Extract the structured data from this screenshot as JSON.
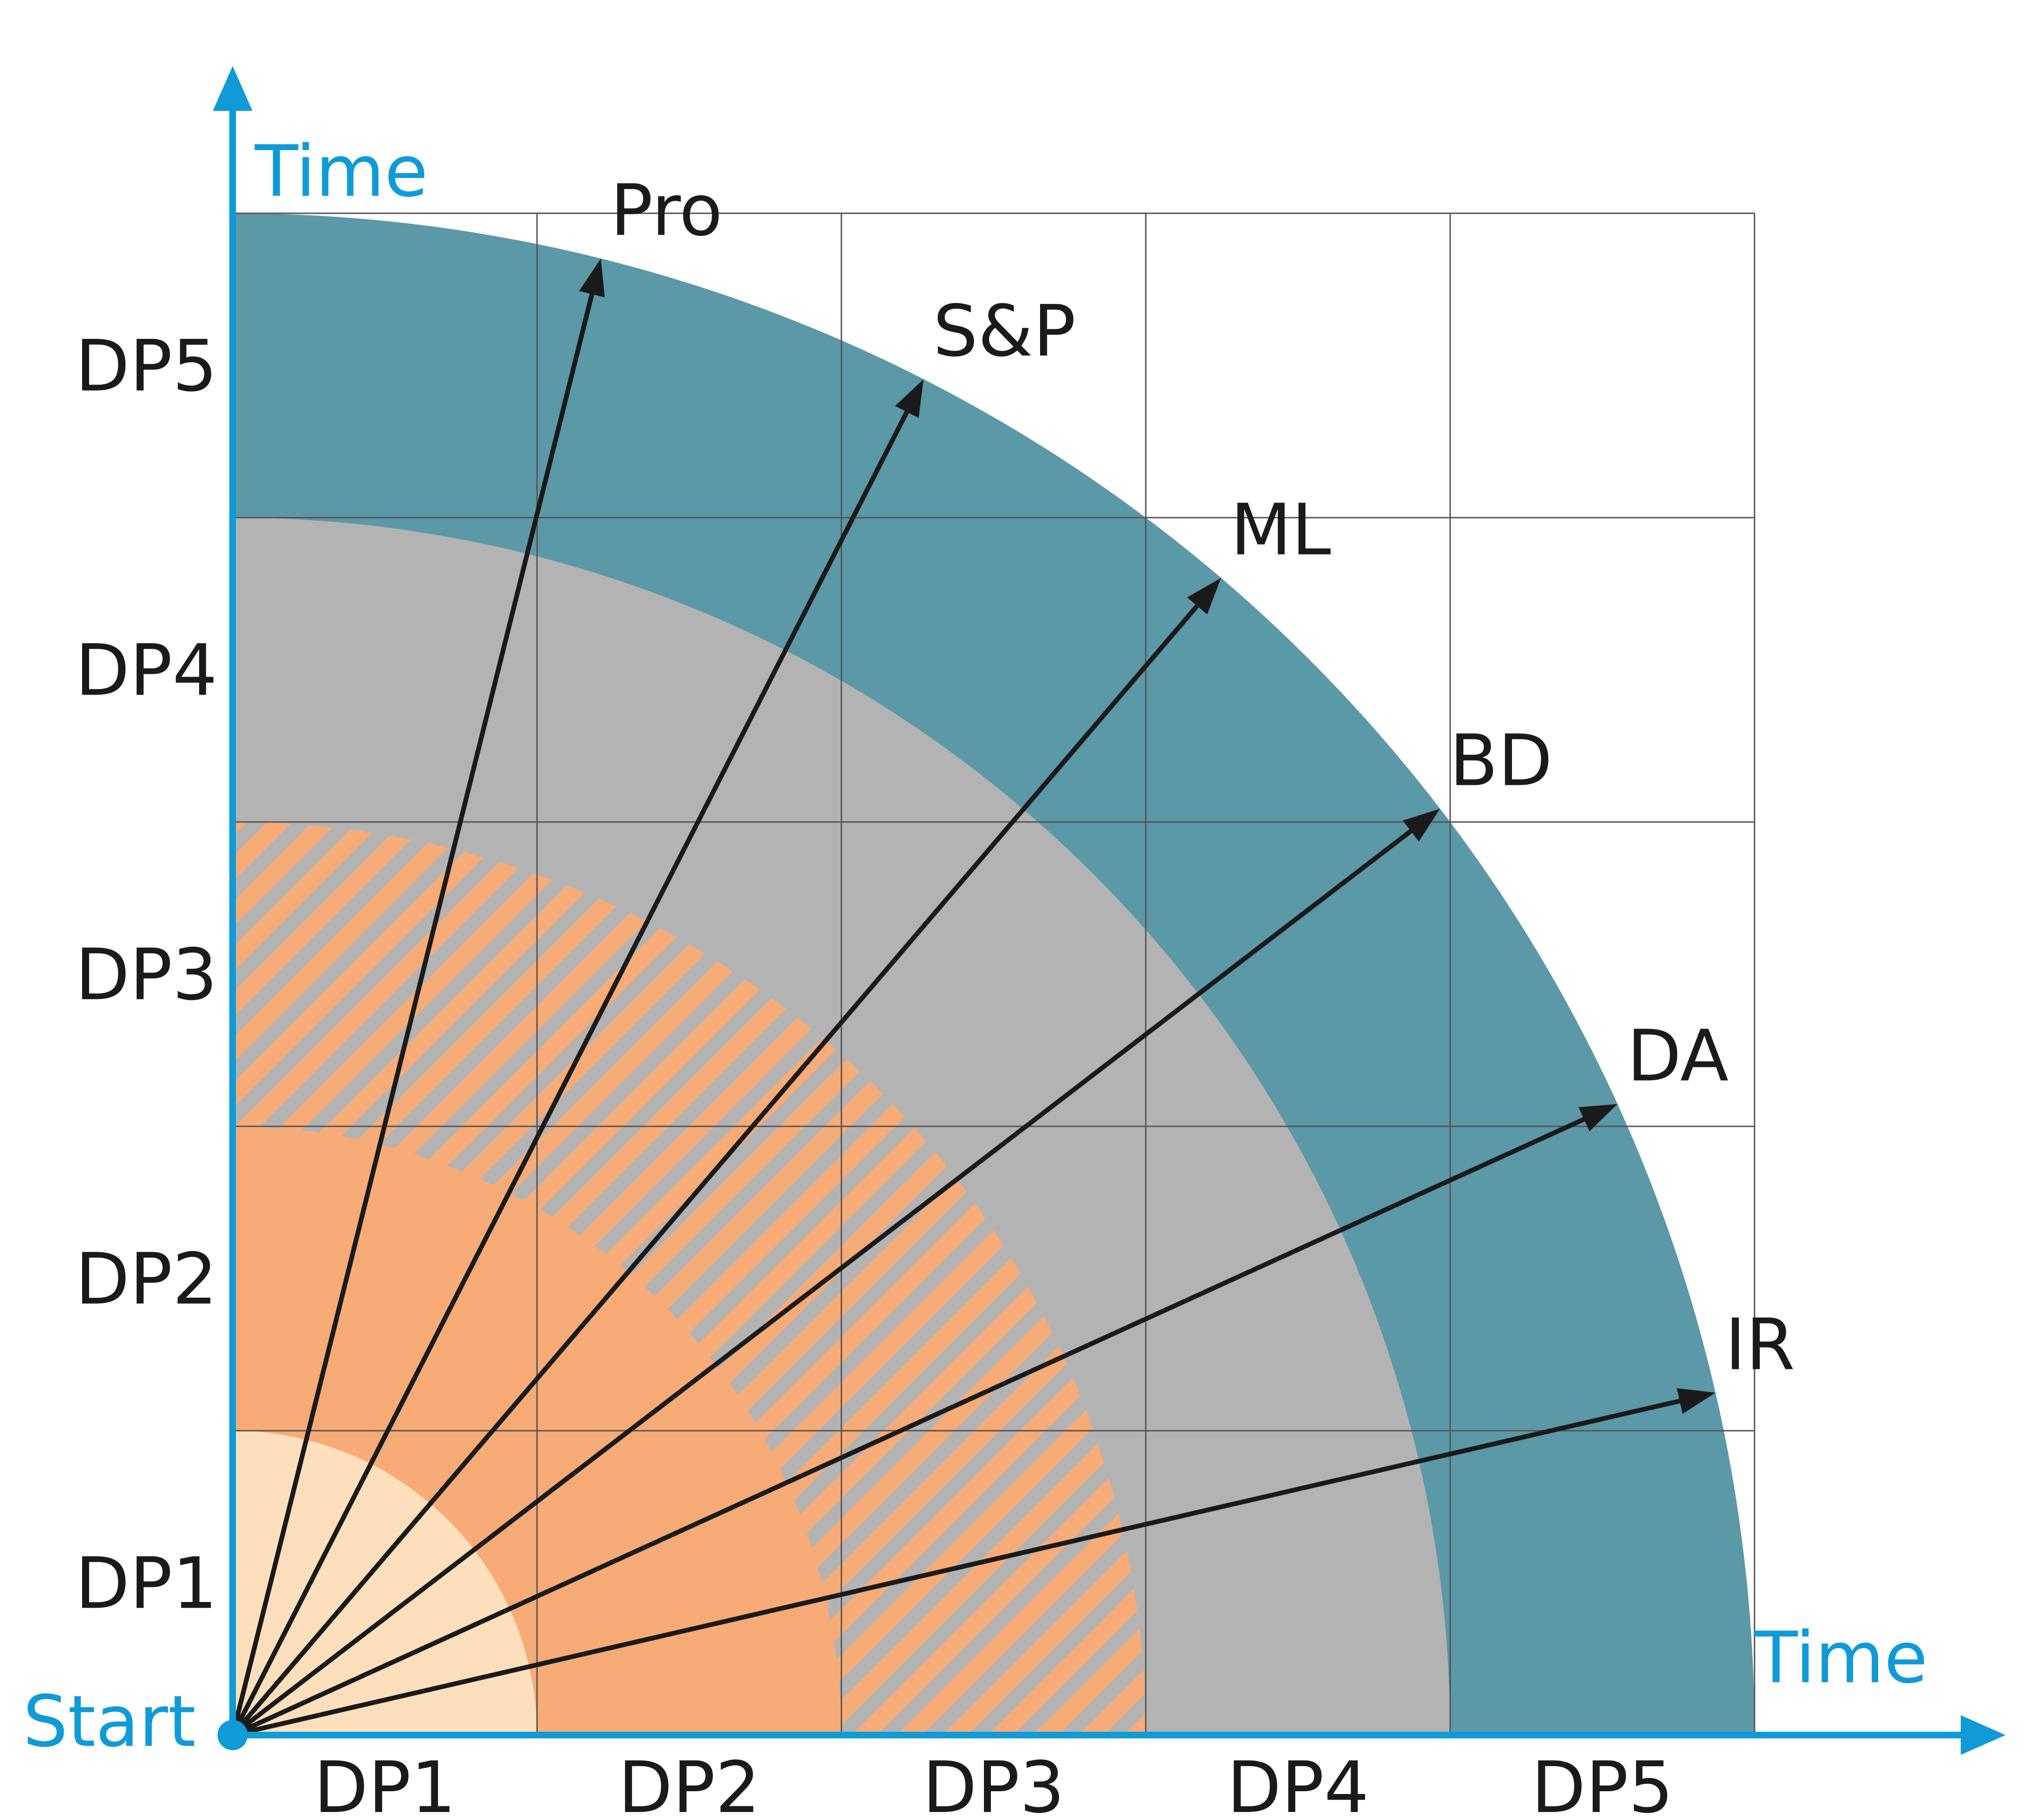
{
  "y_axis": {
    "title": "Time",
    "levels": [
      "DP1",
      "DP2",
      "DP3",
      "DP4",
      "DP5"
    ]
  },
  "x_axis": {
    "title": "Time",
    "levels": [
      "DP1",
      "DP2",
      "DP3",
      "DP4",
      "DP5"
    ]
  },
  "origin_label": "Start",
  "vectors": [
    {
      "label": "Pro",
      "angle_deg": 76
    },
    {
      "label": "S&P",
      "angle_deg": 63
    },
    {
      "label": "ML",
      "angle_deg": 49.5
    },
    {
      "label": "BD",
      "angle_deg": 37.5
    },
    {
      "label": "DA",
      "angle_deg": 24.5
    },
    {
      "label": "IR",
      "angle_deg": 13
    }
  ],
  "bands": [
    {
      "level": "DP1",
      "color": "#fde0bb",
      "pattern": "solid"
    },
    {
      "level": "DP2",
      "color": "#f7ab77",
      "pattern": "solid"
    },
    {
      "level": "DP3",
      "color": "#b3b3b3",
      "pattern": "hatched",
      "hatch_color": "#f7ab77"
    },
    {
      "level": "DP4",
      "color": "#b3b3b3",
      "pattern": "solid"
    },
    {
      "level": "DP5",
      "color": "#5b98a8",
      "pattern": "solid"
    }
  ],
  "colors": {
    "axis": "#0f9ad8",
    "grid": "#555555",
    "arrow": "#1a1a1a"
  }
}
